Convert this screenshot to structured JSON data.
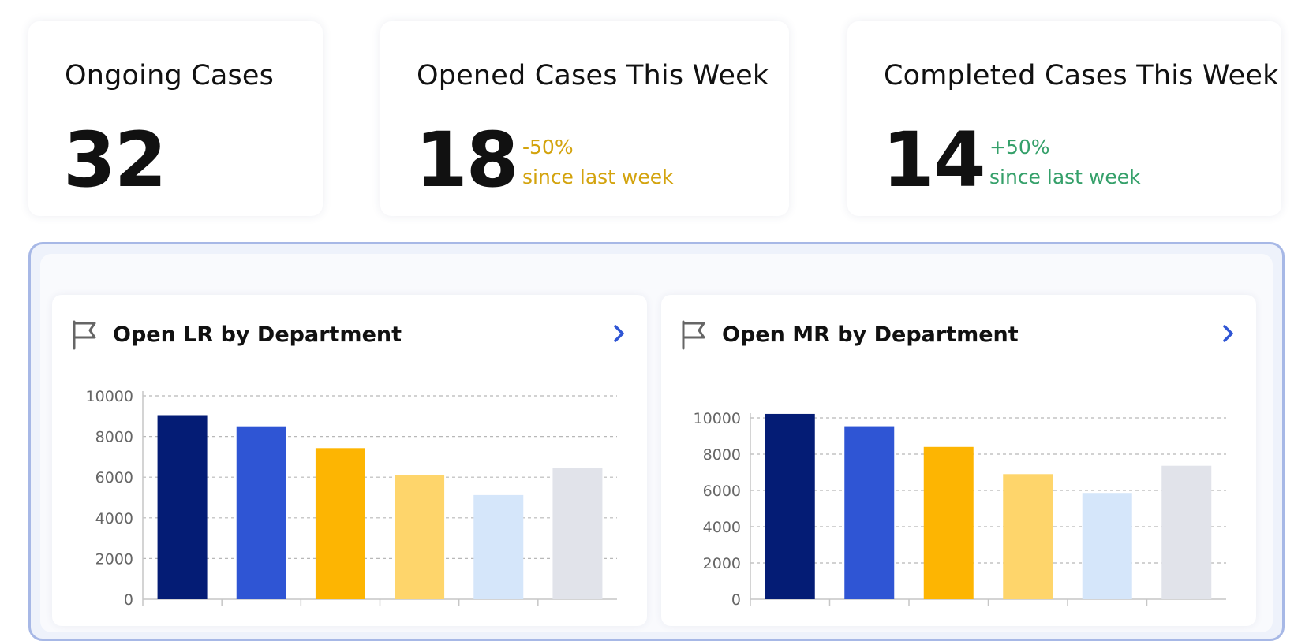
{
  "stats": [
    {
      "title": "Ongoing Cases",
      "value": "32"
    },
    {
      "title": "Opened Cases This Week",
      "value": "18",
      "change": "-50%",
      "change_note": "since last week",
      "trend": "down",
      "color": "#d3a30d"
    },
    {
      "title": "Completed Cases This Week",
      "value": "14",
      "change": "+50%",
      "change_note": "since last week",
      "trend": "up",
      "color": "#35a06a"
    }
  ],
  "panels": {
    "lr": {
      "title": "Open LR by Department",
      "icon": "flag-icon",
      "action_icon": "chevron-right-icon"
    },
    "mr": {
      "title": "Open MR by Department",
      "icon": "flag-icon",
      "action_icon": "chevron-right-icon"
    }
  },
  "chart_data": [
    {
      "type": "bar",
      "title": "Open LR by Department",
      "values": [
        9050,
        8500,
        7430,
        6120,
        5120,
        6460
      ],
      "colors": [
        "#041c75",
        "#2f55d4",
        "#fdb502",
        "#fed56b",
        "#d5e6fa",
        "#e1e3ea"
      ],
      "ylim": [
        0,
        10000
      ],
      "yticks": [
        "0",
        "2000",
        "4000",
        "6000",
        "8000",
        "10000"
      ],
      "grid": true,
      "xlabel": "",
      "ylabel": ""
    },
    {
      "type": "bar",
      "title": "Open MR by Department",
      "values": [
        10220,
        9540,
        8400,
        6900,
        5860,
        7360
      ],
      "colors": [
        "#041c75",
        "#2f55d4",
        "#fdb502",
        "#fed56b",
        "#d5e6fa",
        "#e1e3ea"
      ],
      "ylim": [
        0,
        10000
      ],
      "yticks": [
        "0",
        "2000",
        "4000",
        "6000",
        "8000",
        "10000"
      ],
      "grid": true,
      "xlabel": "",
      "ylabel": ""
    }
  ]
}
